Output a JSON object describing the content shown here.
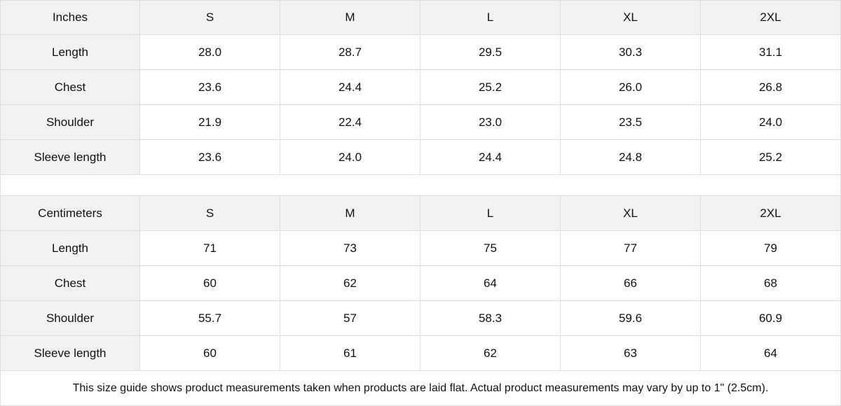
{
  "inches": {
    "header": [
      "Inches",
      "S",
      "M",
      "L",
      "XL",
      "2XL"
    ],
    "rows": [
      [
        "Length",
        "28.0",
        "28.7",
        "29.5",
        "30.3",
        "31.1"
      ],
      [
        "Chest",
        "23.6",
        "24.4",
        "25.2",
        "26.0",
        "26.8"
      ],
      [
        "Shoulder",
        "21.9",
        "22.4",
        "23.0",
        "23.5",
        "24.0"
      ],
      [
        "Sleeve length",
        "23.6",
        "24.0",
        "24.4",
        "24.8",
        "25.2"
      ]
    ]
  },
  "centimeters": {
    "header": [
      "Centimeters",
      "S",
      "M",
      "L",
      "XL",
      "2XL"
    ],
    "rows": [
      [
        "Length",
        "71",
        "73",
        "75",
        "77",
        "79"
      ],
      [
        "Chest",
        "60",
        "62",
        "64",
        "66",
        "68"
      ],
      [
        "Shoulder",
        "55.7",
        "57",
        "58.3",
        "59.6",
        "60.9"
      ],
      [
        "Sleeve length",
        "60",
        "61",
        "62",
        "63",
        "64"
      ]
    ]
  },
  "note": "This size guide shows product measurements taken when products are laid flat.  Actual product measurements may vary by up to 1\" (2.5cm)."
}
